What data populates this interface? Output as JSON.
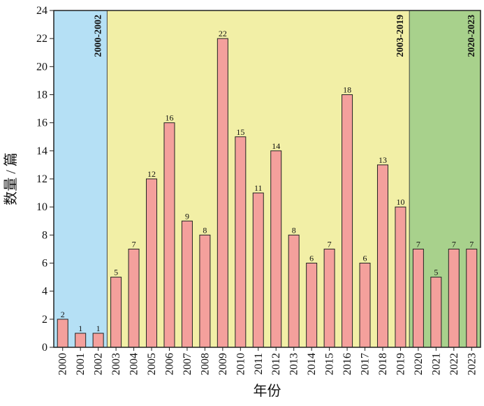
{
  "chart_data": {
    "type": "bar",
    "xlabel": "年份",
    "ylabel": "数量 / 篇",
    "ylim": [
      0,
      24
    ],
    "yticks": [
      0,
      2,
      4,
      6,
      8,
      10,
      12,
      14,
      16,
      18,
      20,
      22,
      24
    ],
    "grid": false,
    "categories": [
      "2000",
      "2001",
      "2002",
      "2003",
      "2004",
      "2005",
      "2006",
      "2007",
      "2008",
      "2009",
      "2010",
      "2011",
      "2012",
      "2013",
      "2014",
      "2015",
      "2016",
      "2017",
      "2018",
      "2019",
      "2020",
      "2021",
      "2022",
      "2023"
    ],
    "values": [
      2,
      1,
      1,
      5,
      7,
      12,
      16,
      9,
      8,
      22,
      15,
      11,
      14,
      8,
      6,
      7,
      18,
      6,
      13,
      10,
      7,
      5,
      7,
      7
    ],
    "bar_color": "#f4a09c",
    "bar_edge_color": "#222222",
    "periods": [
      {
        "label": "2000-2002",
        "start": "2000",
        "end": "2002",
        "color": "#b5e0f5"
      },
      {
        "label": "2003-2019",
        "start": "2003",
        "end": "2019",
        "color": "#f2efa6"
      },
      {
        "label": "2020-2023",
        "start": "2020",
        "end": "2023",
        "color": "#a8d18c"
      }
    ]
  }
}
